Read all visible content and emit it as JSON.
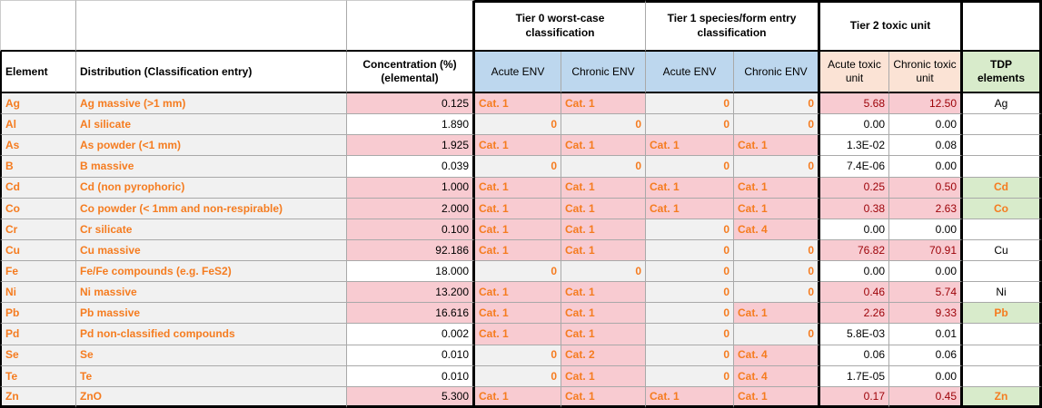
{
  "header": {
    "tier0_title": "Tier 0 worst-case classification",
    "tier1_title": "Tier 1 species/form entry classification",
    "tier2_title": "Tier 2 toxic unit",
    "element": "Element",
    "distribution": "Distribution (Classification entry)",
    "concentration": "Concentration (%) (elemental)",
    "tier0_acute": "Acute ENV",
    "tier0_chronic": "Chronic ENV",
    "tier1_acute": "Acute ENV",
    "tier1_chronic": "Chronic ENV",
    "acute_toxic_unit": "Acute toxic unit",
    "chronic_toxic_unit": "Chronic toxic unit",
    "tdp_elements": "TDP elements"
  },
  "colors": {
    "highlight_pink": "#F8CBD1",
    "cell_gray": "#F1F1F1",
    "header_blue": "#BDD7EE",
    "header_peach": "#FBE3D5",
    "tdp_green": "#D8EBCB",
    "accent_orange": "#F57C20",
    "value_red": "#9C0006"
  },
  "rows": [
    {
      "element": "Ag",
      "distribution": "Ag massive (>1 mm)",
      "concentration": "0.125",
      "concentration_highlight": true,
      "t0_acute": "Cat. 1",
      "t0_chronic": "Cat. 1",
      "t1_acute": "0",
      "t1_chronic": "0",
      "acute_tu": "5.68",
      "chronic_tu": "12.50",
      "tu_highlight": true,
      "tdp": "Ag",
      "tdp_highlight": false
    },
    {
      "element": "Al",
      "distribution": "Al silicate",
      "concentration": "1.890",
      "concentration_highlight": false,
      "t0_acute": "0",
      "t0_chronic": "0",
      "t1_acute": "0",
      "t1_chronic": "0",
      "acute_tu": "0.00",
      "chronic_tu": "0.00",
      "tu_highlight": false,
      "tdp": "",
      "tdp_highlight": false
    },
    {
      "element": "As",
      "distribution": "As powder (<1 mm)",
      "concentration": "1.925",
      "concentration_highlight": true,
      "t0_acute": "Cat. 1",
      "t0_chronic": "Cat. 1",
      "t1_acute": "Cat. 1",
      "t1_chronic": "Cat. 1",
      "acute_tu": "1.3E-02",
      "chronic_tu": "0.08",
      "tu_highlight": false,
      "tdp": "",
      "tdp_highlight": false
    },
    {
      "element": "B",
      "distribution": "B massive",
      "concentration": "0.039",
      "concentration_highlight": false,
      "t0_acute": "0",
      "t0_chronic": "0",
      "t1_acute": "0",
      "t1_chronic": "0",
      "acute_tu": "7.4E-06",
      "chronic_tu": "0.00",
      "tu_highlight": false,
      "tdp": "",
      "tdp_highlight": false
    },
    {
      "element": "Cd",
      "distribution": "Cd (non pyrophoric)",
      "concentration": "1.000",
      "concentration_highlight": true,
      "t0_acute": "Cat. 1",
      "t0_chronic": "Cat. 1",
      "t1_acute": "Cat. 1",
      "t1_chronic": "Cat. 1",
      "acute_tu": "0.25",
      "chronic_tu": "0.50",
      "tu_highlight": true,
      "tdp": "Cd",
      "tdp_highlight": true
    },
    {
      "element": "Co",
      "distribution": "Co powder (< 1mm and non-respirable)",
      "concentration": "2.000",
      "concentration_highlight": true,
      "t0_acute": "Cat. 1",
      "t0_chronic": "Cat. 1",
      "t1_acute": "Cat. 1",
      "t1_chronic": "Cat. 1",
      "acute_tu": "0.38",
      "chronic_tu": "2.63",
      "tu_highlight": true,
      "tdp": "Co",
      "tdp_highlight": true
    },
    {
      "element": "Cr",
      "distribution": "Cr silicate",
      "concentration": "0.100",
      "concentration_highlight": true,
      "t0_acute": "Cat. 1",
      "t0_chronic": "Cat. 1",
      "t1_acute": "0",
      "t1_chronic": "Cat. 4",
      "acute_tu": "0.00",
      "chronic_tu": "0.00",
      "tu_highlight": false,
      "tdp": "",
      "tdp_highlight": false
    },
    {
      "element": "Cu",
      "distribution": "Cu massive",
      "concentration": "92.186",
      "concentration_highlight": true,
      "t0_acute": "Cat. 1",
      "t0_chronic": "Cat. 1",
      "t1_acute": "0",
      "t1_chronic": "0",
      "acute_tu": "76.82",
      "chronic_tu": "70.91",
      "tu_highlight": true,
      "tdp": "Cu",
      "tdp_highlight": false
    },
    {
      "element": "Fe",
      "distribution": "Fe/Fe compounds (e.g. FeS2)",
      "concentration": "18.000",
      "concentration_highlight": false,
      "t0_acute": "0",
      "t0_chronic": "0",
      "t1_acute": "0",
      "t1_chronic": "0",
      "acute_tu": "0.00",
      "chronic_tu": "0.00",
      "tu_highlight": false,
      "tdp": "",
      "tdp_highlight": false
    },
    {
      "element": "Ni",
      "distribution": "Ni massive",
      "concentration": "13.200",
      "concentration_highlight": true,
      "t0_acute": "Cat. 1",
      "t0_chronic": "Cat. 1",
      "t1_acute": "0",
      "t1_chronic": "0",
      "acute_tu": "0.46",
      "chronic_tu": "5.74",
      "tu_highlight": true,
      "tdp": "Ni",
      "tdp_highlight": false
    },
    {
      "element": "Pb",
      "distribution": "Pb massive",
      "concentration": "16.616",
      "concentration_highlight": true,
      "t0_acute": "Cat. 1",
      "t0_chronic": "Cat. 1",
      "t1_acute": "0",
      "t1_chronic": "Cat. 1",
      "acute_tu": "2.26",
      "chronic_tu": "9.33",
      "tu_highlight": true,
      "tdp": "Pb",
      "tdp_highlight": true
    },
    {
      "element": "Pd",
      "distribution": "Pd non-classified compounds",
      "concentration": "0.002",
      "concentration_highlight": false,
      "t0_acute": "Cat. 1",
      "t0_chronic": "Cat. 1",
      "t1_acute": "0",
      "t1_chronic": "0",
      "acute_tu": "5.8E-03",
      "chronic_tu": "0.01",
      "tu_highlight": false,
      "tdp": "",
      "tdp_highlight": false
    },
    {
      "element": "Se",
      "distribution": "Se",
      "concentration": "0.010",
      "concentration_highlight": false,
      "t0_acute": "0",
      "t0_chronic": "Cat. 2",
      "t1_acute": "0",
      "t1_chronic": "Cat. 4",
      "acute_tu": "0.06",
      "chronic_tu": "0.06",
      "tu_highlight": false,
      "tdp": "",
      "tdp_highlight": false
    },
    {
      "element": "Te",
      "distribution": "Te",
      "concentration": "0.010",
      "concentration_highlight": false,
      "t0_acute": "0",
      "t0_chronic": "Cat. 1",
      "t1_acute": "0",
      "t1_chronic": "Cat. 4",
      "acute_tu": "1.7E-05",
      "chronic_tu": "0.00",
      "tu_highlight": false,
      "tdp": "",
      "tdp_highlight": false
    },
    {
      "element": "Zn",
      "distribution": "ZnO",
      "concentration": "5.300",
      "concentration_highlight": true,
      "t0_acute": "Cat. 1",
      "t0_chronic": "Cat. 1",
      "t1_acute": "Cat. 1",
      "t1_chronic": "Cat. 1",
      "acute_tu": "0.17",
      "chronic_tu": "0.45",
      "tu_highlight": true,
      "tdp": "Zn",
      "tdp_highlight": true
    }
  ]
}
